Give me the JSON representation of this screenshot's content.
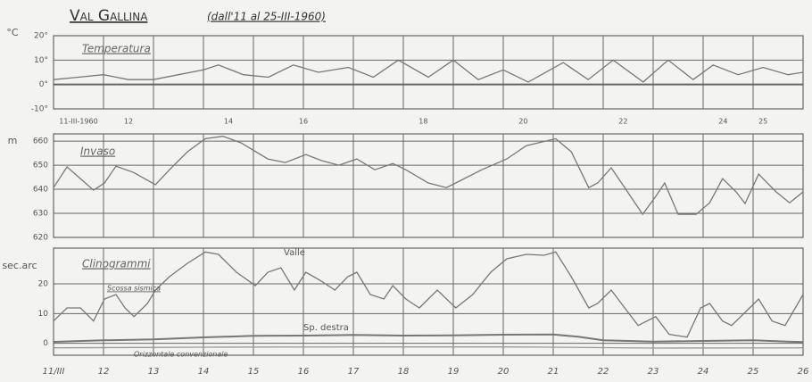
{
  "title": "Val Gallina",
  "subtitle": "(dall'11 al 25-III-1960)",
  "chart_data": [
    {
      "type": "line",
      "title": "Temperatura",
      "ylabel": "°C",
      "xlim": [
        11,
        26
      ],
      "ylim": [
        -10,
        20
      ],
      "yticks": [
        {
          "value": -10,
          "label": "-10°"
        },
        {
          "value": 0,
          "label": "0°"
        },
        {
          "value": 10,
          "label": "10°"
        },
        {
          "value": 20,
          "label": "20°"
        }
      ],
      "xticks": [
        {
          "value": 11.5,
          "label": "11-III-1960"
        },
        {
          "value": 12.5,
          "label": "12"
        },
        {
          "value": 14.5,
          "label": "14"
        },
        {
          "value": 16,
          "label": "16"
        },
        {
          "value": 18.4,
          "label": "18"
        },
        {
          "value": 20.4,
          "label": "20"
        },
        {
          "value": 22.4,
          "label": "22"
        },
        {
          "value": 24.4,
          "label": "24"
        },
        {
          "value": 25.2,
          "label": "25"
        }
      ],
      "series": [
        {
          "color": "#777777",
          "x": [
            11,
            11.5,
            12,
            12.5,
            13,
            13.5,
            14,
            14.3,
            14.8,
            15.3,
            15.8,
            16.3,
            16.9,
            17.4,
            17.9,
            18.5,
            19,
            19.5,
            20,
            20.5,
            21.2,
            21.7,
            22.2,
            22.8,
            23.3,
            23.8,
            24.2,
            24.7,
            25.2,
            25.7,
            26
          ],
          "values": [
            2,
            3,
            4,
            2,
            2,
            4,
            6,
            8,
            4,
            3,
            8,
            5,
            7,
            3,
            10,
            3,
            10,
            2,
            6,
            1,
            9,
            2,
            10,
            1,
            10,
            2,
            8,
            4,
            7,
            4,
            5
          ]
        }
      ]
    },
    {
      "type": "line",
      "title": "Invaso",
      "ylabel": "m",
      "xlim": [
        11,
        26
      ],
      "ylim": [
        620,
        663
      ],
      "yticks": [
        620,
        630,
        640,
        650,
        660
      ],
      "series": [
        {
          "color": "#777777",
          "x": [
            11,
            11.27,
            11.54,
            11.8,
            12.02,
            12.25,
            12.6,
            13.04,
            13.32,
            13.68,
            14.04,
            14.39,
            14.75,
            15.29,
            15.64,
            16.05,
            16.36,
            16.71,
            17.07,
            17.43,
            17.79,
            18.05,
            18.5,
            18.86,
            19.05,
            19.57,
            20.07,
            20.46,
            21.05,
            21.36,
            21.71,
            21.89,
            22.16,
            22.43,
            22.79,
            23.05,
            23.23,
            23.5,
            23.86,
            24.13,
            24.39,
            24.66,
            24.84,
            25.11,
            25.46,
            25.73,
            26
          ],
          "values": [
            640.7,
            649.3,
            644.4,
            639.6,
            642.6,
            649.6,
            647,
            641.9,
            648.1,
            655.6,
            661,
            662,
            659.3,
            652.6,
            651.1,
            654.4,
            651.9,
            650,
            652.6,
            648.1,
            650.7,
            648.1,
            642.6,
            640.7,
            642.6,
            648.1,
            652.6,
            658.1,
            661,
            655.6,
            640.7,
            642.6,
            648.9,
            640.7,
            629.6,
            637,
            642.6,
            629.6,
            629.6,
            634.4,
            644.4,
            638.9,
            634.1,
            646.3,
            638.9,
            634.4,
            638.9
          ]
        }
      ]
    },
    {
      "type": "line",
      "title": "Clinogrammi",
      "ylabel": "sec.arc",
      "xlim": [
        11,
        26
      ],
      "ylim": [
        -4,
        32
      ],
      "yticks": [
        0,
        10,
        20
      ],
      "xticks": [
        {
          "value": 11,
          "label": "11/III"
        },
        12,
        13,
        14,
        15,
        16,
        17,
        18,
        19,
        20,
        21,
        22,
        23,
        24,
        25,
        26
      ],
      "annotations": [
        "Scossa sismica"
      ],
      "series": [
        {
          "name": "Valle",
          "color": "#777777",
          "x": [
            11,
            11.27,
            11.54,
            11.8,
            12.02,
            12.25,
            12.43,
            12.61,
            12.88,
            13.04,
            13.32,
            13.68,
            14.04,
            14.3,
            14.66,
            15.04,
            15.29,
            15.55,
            15.82,
            16.05,
            16.36,
            16.63,
            16.89,
            17.07,
            17.34,
            17.61,
            17.79,
            18.05,
            18.32,
            18.68,
            19.05,
            19.39,
            19.75,
            20.07,
            20.46,
            20.82,
            21.05,
            21.36,
            21.71,
            21.89,
            22.16,
            22.43,
            22.7,
            23.05,
            23.32,
            23.68,
            23.95,
            24.13,
            24.39,
            24.57,
            24.84,
            25.11,
            25.38,
            25.64,
            26
          ],
          "values": [
            7.5,
            11.9,
            11.9,
            7.5,
            14.9,
            16.4,
            11.9,
            9,
            13.4,
            17.9,
            22.4,
            26.9,
            30.7,
            29.9,
            23.9,
            19.4,
            23.9,
            25.4,
            17.9,
            23.9,
            20.9,
            17.9,
            22.4,
            23.9,
            16.4,
            14.9,
            19.4,
            14.9,
            11.9,
            17.9,
            11.9,
            16.4,
            23.9,
            28.4,
            29.9,
            29.6,
            30.7,
            22.4,
            11.9,
            13.4,
            17.9,
            11.9,
            6,
            9,
            3,
            2.1,
            11.9,
            13.4,
            7.5,
            6,
            10.4,
            14.9,
            7.5,
            6,
            16.4
          ]
        },
        {
          "name": "Sp. destra",
          "color": "#777777",
          "x": [
            11,
            12,
            13,
            14,
            15,
            16,
            17,
            18,
            19,
            20,
            21,
            21.5,
            22,
            23,
            24,
            25,
            26
          ],
          "values": [
            0.5,
            1,
            1.3,
            2,
            2.5,
            2.6,
            2.8,
            2.6,
            2.7,
            2.9,
            3,
            2.2,
            1,
            0.6,
            0.8,
            1,
            0.4
          ]
        },
        {
          "name": "Orizzontale convenzionale",
          "color": "#999999",
          "x": [
            11,
            14,
            17,
            20,
            21,
            23,
            26
          ],
          "values": [
            -1.5,
            -1.3,
            -1.2,
            -1.2,
            -1.3,
            -1.6,
            -1.5
          ]
        }
      ]
    }
  ]
}
